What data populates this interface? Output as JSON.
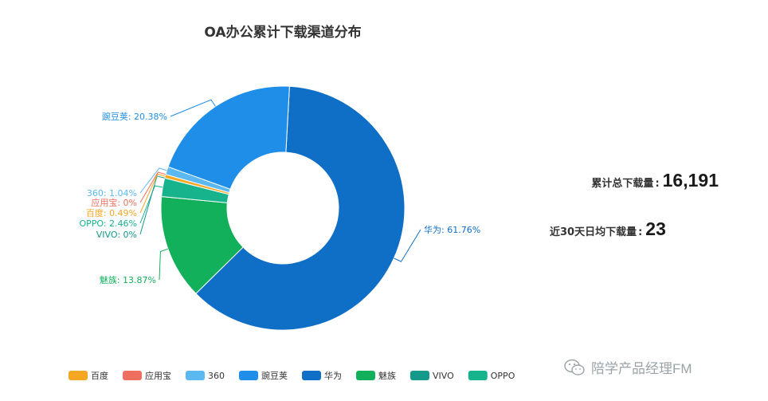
{
  "chart_data": {
    "type": "pie",
    "title": "OA办公累计下载渠道分布",
    "labels": [
      "百度",
      "应用宝",
      "360",
      "豌豆荚",
      "华为",
      "魅族",
      "VIVO",
      "OPPO"
    ],
    "values": [
      0.49,
      0,
      1.04,
      20.38,
      61.76,
      13.87,
      0,
      2.46
    ],
    "slice_labels": [
      "百度: 0.49%",
      "应用宝: 0%",
      "360: 1.04%",
      "豌豆荚: 20.38%",
      "华为: 61.76%",
      "魅族: 13.87%",
      "VIVO: 0%",
      "OPPO: 2.46%"
    ],
    "colors": [
      "#f5a623",
      "#ef6f5e",
      "#5bb8f0",
      "#1e8ee8",
      "#0f6fc6",
      "#13b05c",
      "#14998a",
      "#17b38c"
    ],
    "legend_position": "bottom",
    "donut": true
  },
  "stats": {
    "total_label": "累计总下载量",
    "total_value": "16,191",
    "avg_label": "近30天日均下载量",
    "avg_value": "23",
    "separator": ":"
  },
  "watermark": {
    "text": "陪学产品经理FM",
    "icon": "wechat-icon"
  }
}
